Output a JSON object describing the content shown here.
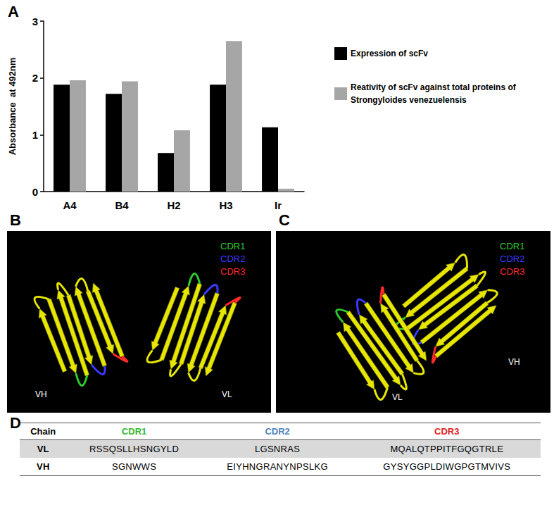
{
  "chart_data": {
    "type": "bar",
    "title": "A",
    "ylabel": "Absorbance  at 492nm",
    "categories": [
      "A4",
      "B4",
      "H2",
      "H3",
      "Ir"
    ],
    "series": [
      {
        "name": "Expression of scFv",
        "color": "#000000",
        "values": [
          1.88,
          1.72,
          0.68,
          1.88,
          1.13
        ]
      },
      {
        "name": "Reativity of scFv against total proteins of Strongyloides venezuelensis",
        "color": "#a6a6a6",
        "values": [
          1.96,
          1.94,
          1.08,
          2.65,
          0.05
        ]
      }
    ],
    "ylim": [
      0,
      3
    ],
    "yticks": [
      0,
      1,
      2,
      3
    ],
    "grid": false,
    "legend": "right"
  },
  "structures": [
    {
      "panel": "B",
      "cdr_legend": [
        {
          "text": "CDR1",
          "color": "#2ecc2e"
        },
        {
          "text": "CDR2",
          "color": "#3a3aff"
        },
        {
          "text": "CDR3",
          "color": "#ff2a2a"
        }
      ],
      "chains": [
        "VH",
        "VL"
      ]
    },
    {
      "panel": "C",
      "cdr_legend": [
        {
          "text": "CDR1",
          "color": "#2ecc2e"
        },
        {
          "text": "CDR2",
          "color": "#3a3aff"
        },
        {
          "text": "CDR3",
          "color": "#ff2a2a"
        }
      ],
      "chains": [
        "VH",
        "VL"
      ]
    }
  ],
  "table": {
    "panel": "D",
    "header": [
      {
        "text": "Chain",
        "color": "#000000"
      },
      {
        "text": "CDR1",
        "color": "#2eb82e"
      },
      {
        "text": "CDR2",
        "color": "#4f81bd"
      },
      {
        "text": "CDR3",
        "color": "#e02020"
      }
    ],
    "rows": [
      [
        "VL",
        "RSSQSLLHSNGYLD",
        "LGSNRAS",
        "MQALQTPPITFGQGTRLE"
      ],
      [
        "VH",
        "SGNWWS",
        "EIYHNGRANYNPSLKG",
        "GYSYGGPLDIWGPGTMVIVS"
      ]
    ]
  }
}
